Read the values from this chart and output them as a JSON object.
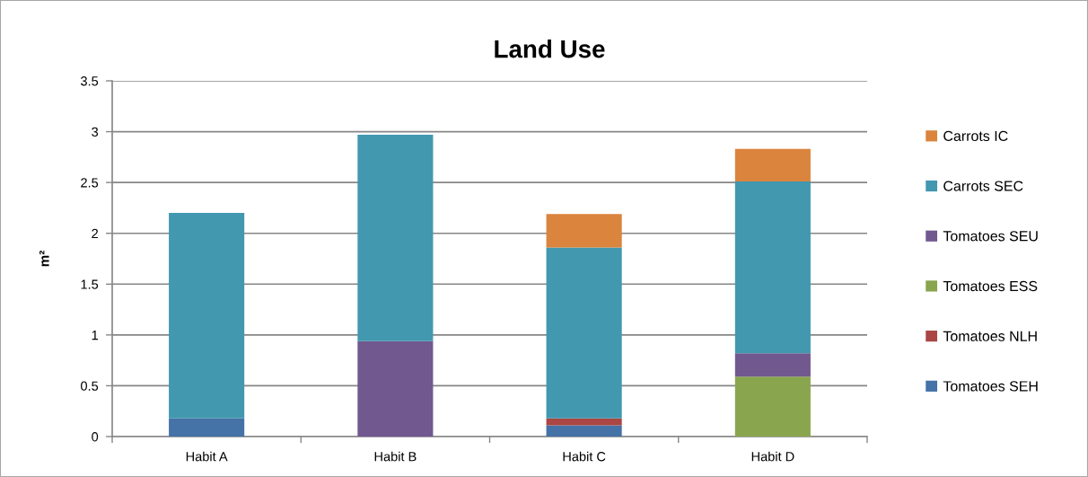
{
  "chart_data": {
    "type": "bar",
    "title": "Land Use",
    "ylabel": "m²",
    "categories": [
      "Habit A",
      "Habit B",
      "Habit C",
      "Habit D"
    ],
    "stacked": true,
    "series": [
      {
        "name": "Tomatoes SEH",
        "color": "#4572a7",
        "values": [
          0.18,
          null,
          0.11,
          null
        ]
      },
      {
        "name": "Tomatoes NLH",
        "color": "#aa4643",
        "values": [
          null,
          null,
          0.07,
          null
        ]
      },
      {
        "name": "Tomatoes ESS",
        "color": "#89a54e",
        "values": [
          null,
          null,
          null,
          0.59
        ]
      },
      {
        "name": "Tomatoes SEU",
        "color": "#71588f",
        "values": [
          null,
          0.94,
          null,
          0.23
        ]
      },
      {
        "name": "Carrots SEC",
        "color": "#4198af",
        "values": [
          2.02,
          2.03,
          1.68,
          1.69
        ]
      },
      {
        "name": "Carrots IC",
        "color": "#db843d",
        "values": [
          null,
          null,
          0.33,
          0.32
        ]
      }
    ],
    "ylim": [
      0,
      3.5
    ],
    "yticks": [
      0,
      0.5,
      1,
      1.5,
      2,
      2.5,
      3,
      3.5
    ],
    "grid": "y",
    "legend": "right"
  }
}
